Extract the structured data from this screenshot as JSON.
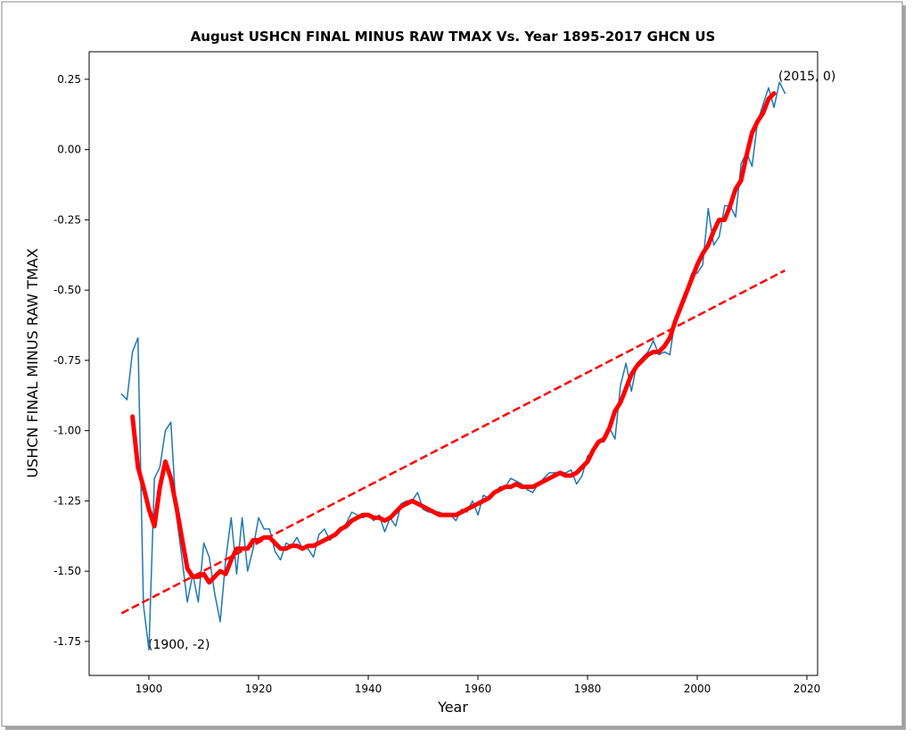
{
  "chart_data": {
    "type": "line",
    "title": "August USHCN FINAL MINUS RAW TMAX Vs. Year 1895-2017 GHCN US",
    "xlabel": "Year",
    "ylabel": "USHCN FINAL MINUS RAW TMAX",
    "xlim": [
      1889.1,
      2021.95
    ],
    "ylim": [
      -1.871,
      0.348
    ],
    "xticks": [
      1900,
      1920,
      1940,
      1960,
      1980,
      2000,
      2020
    ],
    "yticks": [
      0.25,
      {
        "value": 0,
        "label": "0.00"
      },
      -0.25,
      {
        "value": -0.5,
        "label": "-0.50"
      },
      -0.75,
      {
        "value": -1,
        "label": "-1.00"
      },
      -1.25,
      {
        "value": -1.5,
        "label": "-1.50"
      },
      -1.75
    ],
    "annotations": [
      "(2015, 0)",
      "(1900, -2)"
    ],
    "series": [
      {
        "color": "#1f77b4",
        "linestyle": "solid",
        "x": [
          1895,
          1896,
          1897,
          1898,
          1899,
          1900,
          1901,
          1902,
          1903,
          1904,
          1905,
          1906,
          1907,
          1908,
          1909,
          1910,
          1911,
          1912,
          1913,
          1914,
          1915,
          1916,
          1917,
          1918,
          1919,
          1920,
          1921,
          1922,
          1923,
          1924,
          1925,
          1926,
          1927,
          1928,
          1929,
          1930,
          1931,
          1932,
          1933,
          1934,
          1935,
          1936,
          1937,
          1938,
          1939,
          1940,
          1941,
          1942,
          1943,
          1944,
          1945,
          1946,
          1947,
          1948,
          1949,
          1950,
          1951,
          1952,
          1953,
          1954,
          1955,
          1956,
          1957,
          1958,
          1959,
          1960,
          1961,
          1962,
          1963,
          1964,
          1965,
          1966,
          1967,
          1968,
          1969,
          1970,
          1971,
          1972,
          1973,
          1974,
          1975,
          1976,
          1977,
          1978,
          1979,
          1980,
          1981,
          1982,
          1983,
          1984,
          1985,
          1986,
          1987,
          1988,
          1989,
          1990,
          1991,
          1992,
          1993,
          1994,
          1995,
          1996,
          1997,
          1998,
          1999,
          2000,
          2001,
          2002,
          2003,
          2004,
          2005,
          2006,
          2007,
          2008,
          2009,
          2010,
          2011,
          2012,
          2013,
          2014,
          2015,
          2016
        ],
        "values": [
          -0.87,
          -0.89,
          -0.72,
          -0.67,
          -1.62,
          -1.78,
          -1.17,
          -1.13,
          -1.0,
          -0.97,
          -1.3,
          -1.45,
          -1.61,
          -1.51,
          -1.61,
          -1.4,
          -1.45,
          -1.58,
          -1.68,
          -1.46,
          -1.31,
          -1.51,
          -1.31,
          -1.5,
          -1.42,
          -1.31,
          -1.35,
          -1.35,
          -1.43,
          -1.46,
          -1.4,
          -1.41,
          -1.38,
          -1.42,
          -1.42,
          -1.45,
          -1.37,
          -1.35,
          -1.39,
          -1.37,
          -1.35,
          -1.33,
          -1.29,
          -1.3,
          -1.31,
          -1.3,
          -1.32,
          -1.3,
          -1.36,
          -1.31,
          -1.34,
          -1.26,
          -1.25,
          -1.25,
          -1.22,
          -1.28,
          -1.29,
          -1.29,
          -1.29,
          -1.3,
          -1.3,
          -1.32,
          -1.28,
          -1.29,
          -1.25,
          -1.3,
          -1.23,
          -1.24,
          -1.22,
          -1.2,
          -1.2,
          -1.17,
          -1.18,
          -1.19,
          -1.21,
          -1.22,
          -1.19,
          -1.17,
          -1.15,
          -1.15,
          -1.15,
          -1.15,
          -1.14,
          -1.19,
          -1.16,
          -1.09,
          -1.08,
          -1.04,
          -1.04,
          -0.99,
          -1.03,
          -0.84,
          -0.76,
          -0.86,
          -0.76,
          -0.74,
          -0.72,
          -0.68,
          -0.73,
          -0.72,
          -0.73,
          -0.6,
          -0.55,
          -0.5,
          -0.44,
          -0.44,
          -0.41,
          -0.21,
          -0.34,
          -0.31,
          -0.2,
          -0.2,
          -0.24,
          -0.05,
          -0.01,
          -0.06,
          0.1,
          0.16,
          0.22,
          0.15,
          0.24,
          0.2
        ]
      },
      {
        "color": "#ff0000",
        "linestyle": "solid",
        "x": [
          1897,
          1898,
          1899,
          1900,
          1901,
          1902,
          1903,
          1904,
          1905,
          1906,
          1907,
          1908,
          1909,
          1910,
          1911,
          1912,
          1913,
          1914,
          1915,
          1916,
          1917,
          1918,
          1919,
          1920,
          1921,
          1922,
          1923,
          1924,
          1925,
          1926,
          1927,
          1928,
          1929,
          1930,
          1931,
          1932,
          1933,
          1934,
          1935,
          1936,
          1937,
          1938,
          1939,
          1940,
          1941,
          1942,
          1943,
          1944,
          1945,
          1946,
          1947,
          1948,
          1949,
          1950,
          1951,
          1952,
          1953,
          1954,
          1955,
          1956,
          1957,
          1958,
          1959,
          1960,
          1961,
          1962,
          1963,
          1964,
          1965,
          1966,
          1967,
          1968,
          1969,
          1970,
          1971,
          1972,
          1973,
          1974,
          1975,
          1976,
          1977,
          1978,
          1979,
          1980,
          1981,
          1982,
          1983,
          1984,
          1985,
          1986,
          1987,
          1988,
          1989,
          1990,
          1991,
          1992,
          1993,
          1994,
          1995,
          1996,
          1997,
          1998,
          1999,
          2000,
          2001,
          2002,
          2003,
          2004,
          2005,
          2006,
          2007,
          2008,
          2009,
          2010,
          2011,
          2012,
          2013,
          2014
        ],
        "values": [
          -0.95,
          -1.13,
          -1.2,
          -1.28,
          -1.34,
          -1.2,
          -1.11,
          -1.17,
          -1.27,
          -1.38,
          -1.49,
          -1.52,
          -1.52,
          -1.51,
          -1.54,
          -1.52,
          -1.5,
          -1.51,
          -1.46,
          -1.42,
          -1.42,
          -1.42,
          -1.39,
          -1.39,
          -1.38,
          -1.38,
          -1.4,
          -1.42,
          -1.42,
          -1.41,
          -1.41,
          -1.42,
          -1.41,
          -1.41,
          -1.4,
          -1.39,
          -1.38,
          -1.37,
          -1.35,
          -1.34,
          -1.32,
          -1.31,
          -1.3,
          -1.3,
          -1.31,
          -1.31,
          -1.32,
          -1.31,
          -1.29,
          -1.27,
          -1.26,
          -1.25,
          -1.26,
          -1.27,
          -1.28,
          -1.29,
          -1.3,
          -1.3,
          -1.3,
          -1.3,
          -1.29,
          -1.28,
          -1.27,
          -1.26,
          -1.25,
          -1.24,
          -1.22,
          -1.21,
          -1.2,
          -1.2,
          -1.19,
          -1.2,
          -1.2,
          -1.2,
          -1.19,
          -1.18,
          -1.17,
          -1.16,
          -1.15,
          -1.16,
          -1.16,
          -1.15,
          -1.13,
          -1.11,
          -1.07,
          -1.04,
          -1.03,
          -0.99,
          -0.93,
          -0.9,
          -0.85,
          -0.8,
          -0.77,
          -0.75,
          -0.73,
          -0.72,
          -0.72,
          -0.7,
          -0.67,
          -0.61,
          -0.56,
          -0.51,
          -0.46,
          -0.41,
          -0.37,
          -0.34,
          -0.29,
          -0.25,
          -0.25,
          -0.2,
          -0.14,
          -0.11,
          -0.02,
          0.06,
          0.1,
          0.13,
          0.18,
          0.2
        ]
      },
      {
        "color": "#ff0000",
        "linestyle": "dashed",
        "x": [
          1895,
          2016
        ],
        "values": [
          -1.65,
          -0.43
        ]
      }
    ]
  }
}
